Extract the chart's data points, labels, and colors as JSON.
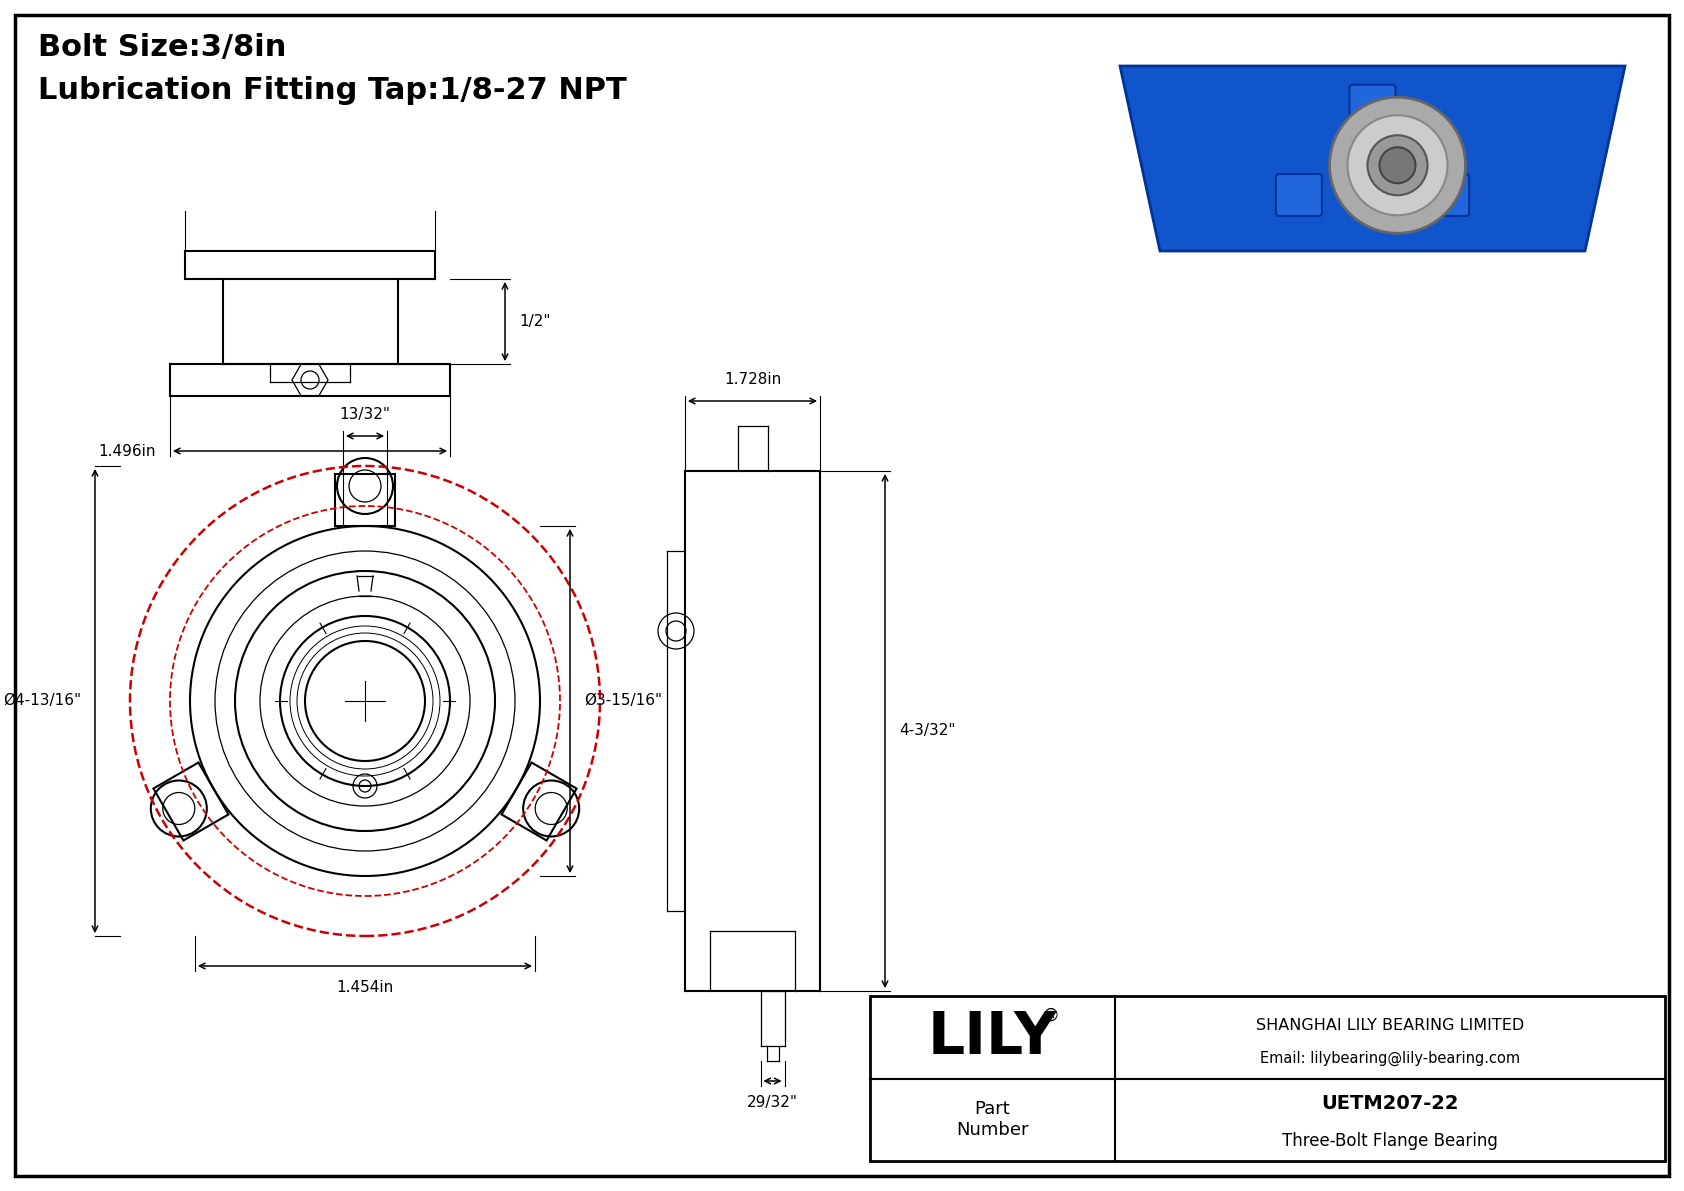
{
  "bg_color": "#ffffff",
  "title_line1": "Bolt Size:3/8in",
  "title_line2": "Lubrication Fitting Tap:1/8-27 NPT",
  "dim_top": "13/32\"",
  "dim_left": "Ø4-13/16\"",
  "dim_right": "Ø3-15/16\"",
  "dim_bottom": "1.454in",
  "dim_side_width": "1.728in",
  "dim_side_height": "4-3/32\"",
  "dim_side_bottom": "29/32\"",
  "dim_front_height": "1/2\"",
  "dim_front_width": "1.496in",
  "logo_text": "LILY",
  "logo_reg": "®",
  "company_line1": "SHANGHAI LILY BEARING LIMITED",
  "company_line2": "Email: lilybearing@lily-bearing.com",
  "part_label": "Part\nNumber",
  "part_number": "UETM207-22",
  "part_desc": "Three-Bolt Flange Bearing"
}
